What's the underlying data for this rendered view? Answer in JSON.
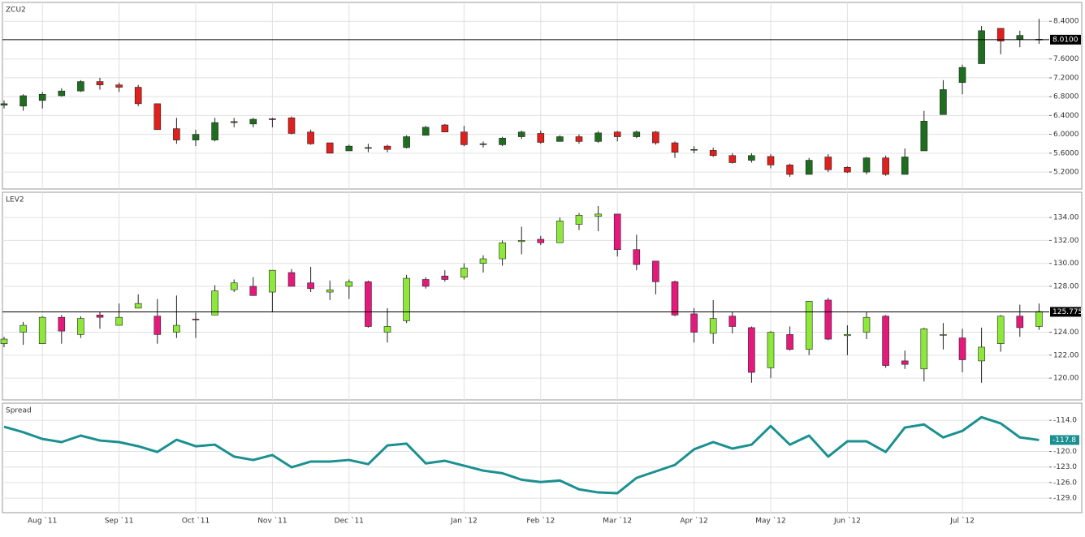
{
  "chart_data": [
    {
      "type": "candlestick",
      "title": "ZCU2",
      "up_color": "#1f6e1f",
      "down_color": "#e0201c",
      "ylim": [
        4.84,
        8.8
      ],
      "yticks": [
        {
          "value": 8.4,
          "label": "8.4000"
        },
        {
          "value": 7.6,
          "label": "7.6000"
        },
        {
          "value": 7.2,
          "label": "7.2000"
        },
        {
          "value": 6.8,
          "label": "6.8000"
        },
        {
          "value": 6.4,
          "label": "6.4000"
        },
        {
          "value": 6.0,
          "label": "6.0000"
        },
        {
          "value": 5.6,
          "label": "5.6000"
        },
        {
          "value": 5.2,
          "label": "5.2000"
        }
      ],
      "reference": {
        "value": 8.01,
        "label": "8.0100"
      },
      "open": [
        6.62,
        6.6,
        6.72,
        6.82,
        6.92,
        7.12,
        7.05,
        7.0,
        6.65,
        6.12,
        5.88,
        5.88,
        6.25,
        6.22,
        6.33,
        6.35,
        6.05,
        5.82,
        5.65,
        5.72,
        5.75,
        5.72,
        5.98,
        6.2,
        6.05,
        5.8,
        5.78,
        5.95,
        6.02,
        5.85,
        5.95,
        5.85,
        6.05,
        5.95,
        6.05,
        5.82,
        5.68,
        5.66,
        5.55,
        5.45,
        5.53,
        5.35,
        5.15,
        5.52,
        5.3,
        5.2,
        5.5,
        5.15,
        5.65,
        6.42,
        7.1,
        7.5,
        8.25,
        8.02,
        8.02
      ],
      "high": [
        6.72,
        6.85,
        6.9,
        6.98,
        7.15,
        7.2,
        7.1,
        7.05,
        6.65,
        6.35,
        6.1,
        6.35,
        6.35,
        6.35,
        6.35,
        6.38,
        6.1,
        5.82,
        5.78,
        5.8,
        5.78,
        5.98,
        6.18,
        6.22,
        6.18,
        5.85,
        5.95,
        6.08,
        6.08,
        5.98,
        6.0,
        6.07,
        6.07,
        6.08,
        6.07,
        5.85,
        5.75,
        5.72,
        5.6,
        5.6,
        5.58,
        5.38,
        5.5,
        5.58,
        5.32,
        5.52,
        5.55,
        5.7,
        6.5,
        7.15,
        7.48,
        8.3,
        8.25,
        8.2,
        8.45
      ],
      "low": [
        6.55,
        6.5,
        6.55,
        6.8,
        6.9,
        6.95,
        6.9,
        6.6,
        6.1,
        5.8,
        5.75,
        5.85,
        6.15,
        6.15,
        6.15,
        6.0,
        5.78,
        5.6,
        5.65,
        5.62,
        5.62,
        5.7,
        5.98,
        6.05,
        5.75,
        5.72,
        5.75,
        5.9,
        5.8,
        5.85,
        5.8,
        5.82,
        5.85,
        5.92,
        5.78,
        5.5,
        5.6,
        5.52,
        5.38,
        5.4,
        5.28,
        5.1,
        5.15,
        5.2,
        5.18,
        5.15,
        5.12,
        5.15,
        5.65,
        6.42,
        6.85,
        7.5,
        7.7,
        7.85,
        7.92
      ],
      "close": [
        6.65,
        6.82,
        6.85,
        6.92,
        7.12,
        7.05,
        7.0,
        6.65,
        6.1,
        5.88,
        6.0,
        6.25,
        6.27,
        6.32,
        6.32,
        6.02,
        5.8,
        5.6,
        5.75,
        5.72,
        5.68,
        5.95,
        6.15,
        6.05,
        5.78,
        5.8,
        5.92,
        6.05,
        5.83,
        5.95,
        5.85,
        6.03,
        5.95,
        6.05,
        5.82,
        5.62,
        5.68,
        5.55,
        5.4,
        5.55,
        5.35,
        5.15,
        5.45,
        5.25,
        5.2,
        5.5,
        5.15,
        5.52,
        6.28,
        6.95,
        7.42,
        8.2,
        7.98,
        8.1,
        8.01
      ]
    },
    {
      "type": "candlestick",
      "title": "LEV2",
      "up_color": "#8ee83a",
      "down_color": "#e5197c",
      "ylim": [
        118.1,
        136.2
      ],
      "yticks": [
        {
          "value": 134,
          "label": "134.00"
        },
        {
          "value": 132,
          "label": "132.00"
        },
        {
          "value": 130,
          "label": "130.00"
        },
        {
          "value": 128,
          "label": "128.00"
        },
        {
          "value": 124,
          "label": "124.00"
        },
        {
          "value": 122,
          "label": "122.00"
        },
        {
          "value": 120,
          "label": "120.00"
        }
      ],
      "reference": {
        "value": 125.775,
        "label": "125.775"
      },
      "open": [
        123.0,
        124.0,
        123.0,
        125.3,
        123.8,
        125.5,
        124.6,
        126.1,
        125.4,
        124.0,
        125.15,
        125.5,
        127.7,
        128.0,
        127.5,
        129.2,
        128.3,
        127.5,
        128.0,
        128.4,
        124.0,
        125.0,
        128.6,
        128.9,
        128.8,
        130.0,
        130.4,
        131.9,
        132.1,
        131.8,
        133.4,
        134.1,
        134.3,
        131.2,
        130.2,
        128.4,
        125.6,
        123.9,
        125.4,
        124.4,
        120.9,
        123.8,
        122.5,
        126.8,
        123.7,
        124.0,
        125.4,
        121.5,
        120.8,
        123.75,
        123.5,
        121.5,
        123.0,
        125.4,
        124.5
      ],
      "high": [
        123.6,
        124.9,
        125.4,
        125.5,
        125.4,
        125.8,
        126.5,
        127.3,
        126.9,
        127.2,
        125.7,
        128.1,
        128.6,
        128.8,
        129.4,
        129.5,
        129.7,
        128.5,
        128.6,
        128.5,
        126.1,
        129.0,
        128.8,
        129.4,
        130.0,
        130.7,
        132.0,
        133.2,
        132.4,
        134.0,
        134.4,
        135.0,
        134.3,
        132.5,
        130.2,
        128.5,
        126.1,
        126.8,
        125.8,
        124.5,
        124.1,
        124.5,
        126.7,
        127.0,
        124.6,
        125.8,
        125.5,
        122.4,
        124.4,
        124.8,
        124.3,
        124.4,
        125.5,
        126.4,
        126.5
      ],
      "low": [
        122.7,
        122.9,
        123.0,
        123.0,
        123.5,
        124.3,
        124.6,
        126.1,
        123.0,
        123.5,
        123.5,
        125.5,
        127.5,
        127.2,
        125.8,
        128.0,
        127.5,
        126.8,
        126.9,
        124.4,
        123.1,
        124.8,
        127.8,
        128.4,
        128.6,
        129.2,
        129.8,
        130.8,
        131.6,
        131.8,
        132.9,
        132.8,
        130.6,
        129.4,
        127.3,
        125.4,
        123.1,
        123.0,
        123.9,
        119.6,
        120.0,
        122.4,
        122.0,
        123.3,
        122.0,
        123.4,
        120.9,
        120.8,
        119.7,
        122.5,
        120.5,
        119.6,
        122.3,
        123.6,
        124.2
      ],
      "close": [
        123.4,
        124.6,
        125.3,
        124.1,
        125.2,
        125.3,
        125.3,
        126.5,
        123.8,
        124.6,
        125.1,
        127.6,
        128.3,
        127.2,
        129.4,
        128.0,
        127.8,
        127.7,
        128.4,
        124.5,
        124.5,
        128.7,
        128.0,
        128.6,
        129.6,
        130.4,
        131.8,
        132.0,
        131.8,
        133.7,
        134.2,
        134.3,
        131.2,
        129.9,
        128.4,
        125.5,
        124.0,
        125.2,
        124.5,
        120.5,
        124.0,
        122.5,
        126.7,
        123.4,
        123.8,
        125.3,
        121.1,
        121.2,
        124.3,
        123.8,
        121.6,
        122.7,
        125.4,
        124.4,
        125.8
      ]
    },
    {
      "type": "line",
      "title": "Spread",
      "color": "#1b9090",
      "ylim": [
        -131.8,
        -110.7
      ],
      "yticks": [
        {
          "value": -114,
          "label": "-114.0"
        },
        {
          "value": -120,
          "label": "-120.0"
        },
        {
          "value": -123,
          "label": "-123.0"
        },
        {
          "value": -126,
          "label": "-126.0"
        },
        {
          "value": -129,
          "label": "-129.0"
        }
      ],
      "categories": [
        null,
        null,
        "Aug `11",
        null,
        null,
        null,
        "Sep `11",
        null,
        null,
        null,
        "Oct `11",
        null,
        null,
        null,
        "Nov `11",
        null,
        null,
        null,
        "Dec `11",
        null,
        null,
        null,
        null,
        null,
        "Jan `12",
        null,
        null,
        null,
        "Feb `12",
        null,
        null,
        null,
        "Mar `12",
        null,
        null,
        null,
        "Apr `12",
        null,
        null,
        null,
        "May `12",
        null,
        null,
        null,
        "Jun `12",
        null,
        null,
        null,
        null,
        null,
        "Jul `12",
        null,
        null,
        null,
        null
      ],
      "values": [
        -115.25,
        -116.3,
        -117.6,
        -118.2,
        -116.95,
        -117.9,
        -118.2,
        -119.0,
        -120.1,
        -117.75,
        -119.0,
        -118.7,
        -121.0,
        -121.65,
        -120.7,
        -123.05,
        -121.95,
        -121.95,
        -121.65,
        -122.45,
        -118.85,
        -118.5,
        -122.3,
        -121.8,
        -122.75,
        -123.7,
        -124.2,
        -125.45,
        -125.9,
        -125.6,
        -127.3,
        -127.9,
        -128.05,
        -125.1,
        -123.85,
        -122.6,
        -119.6,
        -118.2,
        -119.45,
        -118.7,
        -115.1,
        -118.7,
        -116.95,
        -121.0,
        -118.05,
        -118.05,
        -120.1,
        -115.4,
        -114.8,
        -117.3,
        -116.05,
        -113.4,
        -114.6,
        -117.3,
        -117.8
      ]
    }
  ]
}
